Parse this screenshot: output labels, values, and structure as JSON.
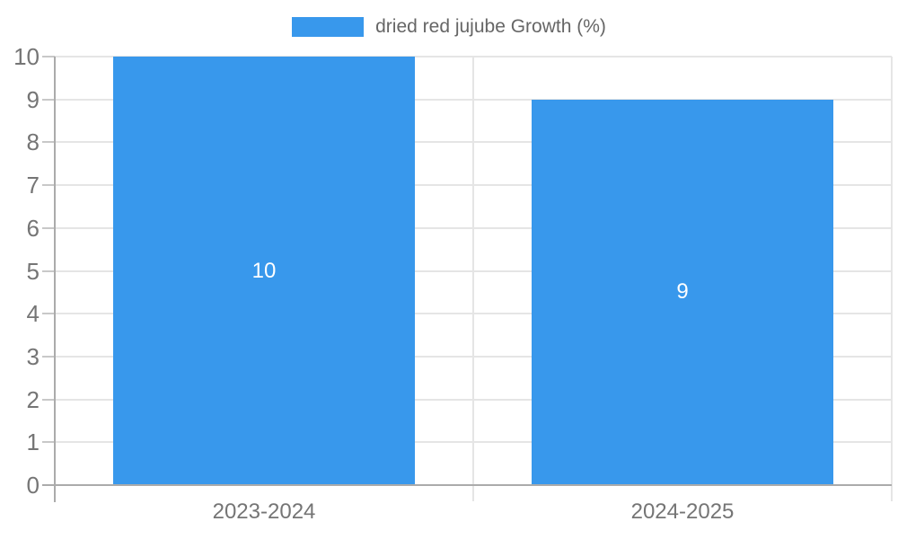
{
  "chart_data": {
    "type": "bar",
    "title": "",
    "legend_label": "dried red jujube Growth (%)",
    "legend_position": "top-center",
    "categories": [
      "2023-2024",
      "2024-2025"
    ],
    "series": [
      {
        "name": "dried red jujube Growth (%)",
        "values": [
          10,
          9
        ]
      }
    ],
    "value_labels": [
      "10",
      "9"
    ],
    "yticks": [
      "0",
      "1",
      "2",
      "3",
      "4",
      "5",
      "6",
      "7",
      "8",
      "9",
      "10"
    ],
    "ylim": [
      0,
      10
    ],
    "grid": true,
    "colors": {
      "bar": "#3898ec",
      "axis_line": "#ababab",
      "grid_line": "#e5e5e5",
      "tick_mark": "#c8c8c8",
      "tick_text": "#757575",
      "legend_text": "#666666",
      "bar_label_text": "#ffffff",
      "background": "#ffffff"
    }
  }
}
